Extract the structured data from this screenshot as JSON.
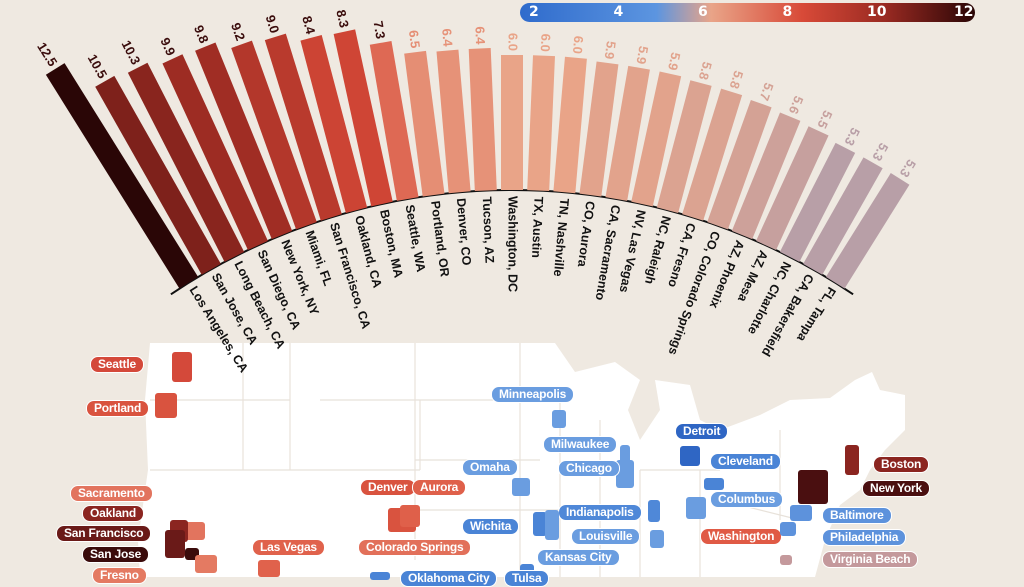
{
  "chart_data": {
    "type": "bar",
    "layout": "radial",
    "categories": [
      "Los Angeles, CA",
      "San Jose, CA",
      "Long Beach, CA",
      "San Diego, CA",
      "New York, NY",
      "Miami, FL",
      "San Francisco, CA",
      "Oakland, CA",
      "Boston, MA",
      "Seattle, WA",
      "Portland, OR",
      "Denver, CO",
      "Tucson, AZ",
      "Washington, DC",
      "TX, Austin",
      "TN, Nashville",
      "CO, Aurora",
      "CA, Sacramento",
      "NV, Las Vegas",
      "NC, Raleigh",
      "CA, Fresno",
      "CO, Colorado Springs",
      "AZ, Phoenix",
      "AZ, Mesa",
      "NC, Charlotte",
      "CA, Bakersfield",
      "FL, Tampa"
    ],
    "values": [
      12.5,
      10.5,
      10.3,
      9.9,
      9.8,
      9.2,
      9.0,
      8.4,
      8.3,
      7.3,
      6.5,
      6.4,
      6.4,
      6.0,
      6.0,
      6.0,
      5.9,
      5.9,
      5.9,
      5.8,
      5.8,
      5.7,
      5.6,
      5.5,
      5.3,
      5.3,
      5.3
    ],
    "value_labels": [
      "12.5",
      "10.5",
      "10.3",
      "9.9",
      "9.8",
      "9.2",
      "9.0",
      "8.4",
      "8.3",
      "7.3",
      "6.5",
      "6.4",
      "6.4",
      "6.0",
      "6.0",
      "6.0",
      "5.9",
      "5.9",
      "5.9",
      "5.8",
      "5.8",
      "5.7",
      "5.6",
      "5.5",
      "5.3",
      "5.3",
      "5.3"
    ],
    "colorbar": {
      "ticks": [
        "2",
        "4",
        "6",
        "8",
        "10",
        "12"
      ],
      "range": [
        2,
        12
      ],
      "colors": [
        "#2f6bcc",
        "#5c95e0",
        "#e9a488",
        "#d84a38",
        "#9a2a22",
        "#2a0606"
      ]
    }
  },
  "map": {
    "cities": [
      {
        "name": "Seattle",
        "color": "#d4493a"
      },
      {
        "name": "Portland",
        "color": "#d9533f"
      },
      {
        "name": "Sacramento",
        "color": "#e2745e"
      },
      {
        "name": "Oakland",
        "color": "#8b2520"
      },
      {
        "name": "San Francisco",
        "color": "#6a1a18"
      },
      {
        "name": "San Jose",
        "color": "#3a0b0b"
      },
      {
        "name": "Fresno",
        "color": "#e47a62"
      },
      {
        "name": "Las Vegas",
        "color": "#e0624c"
      },
      {
        "name": "Denver",
        "color": "#d9533f"
      },
      {
        "name": "Aurora",
        "color": "#df604a"
      },
      {
        "name": "Colorado Springs",
        "color": "#e2705a"
      },
      {
        "name": "Omaha",
        "color": "#6a9de0"
      },
      {
        "name": "Wichita",
        "color": "#4a84d6"
      },
      {
        "name": "Minneapolis",
        "color": "#6a9de0"
      },
      {
        "name": "Milwaukee",
        "color": "#6a9de0"
      },
      {
        "name": "Chicago",
        "color": "#6a9de0"
      },
      {
        "name": "Indianapolis",
        "color": "#4f88d8"
      },
      {
        "name": "Louisville",
        "color": "#6a9de0"
      },
      {
        "name": "Kansas City",
        "color": "#6a9de0"
      },
      {
        "name": "Detroit",
        "color": "#2f66c4"
      },
      {
        "name": "Cleveland",
        "color": "#4a84d6"
      },
      {
        "name": "Columbus",
        "color": "#6a9de0"
      },
      {
        "name": "Washington",
        "color": "#e05a45"
      },
      {
        "name": "Boston",
        "color": "#8b2520"
      },
      {
        "name": "New York",
        "color": "#4a0f10"
      },
      {
        "name": "Baltimore",
        "color": "#5d92dc"
      },
      {
        "name": "Philadelphia",
        "color": "#5d92dc"
      },
      {
        "name": "Virginia Beach",
        "color": "#c4999c"
      },
      {
        "name": "Oklahoma City",
        "color": "#4a84d6"
      },
      {
        "name": "Tulsa",
        "color": "#4a84d6"
      }
    ]
  }
}
